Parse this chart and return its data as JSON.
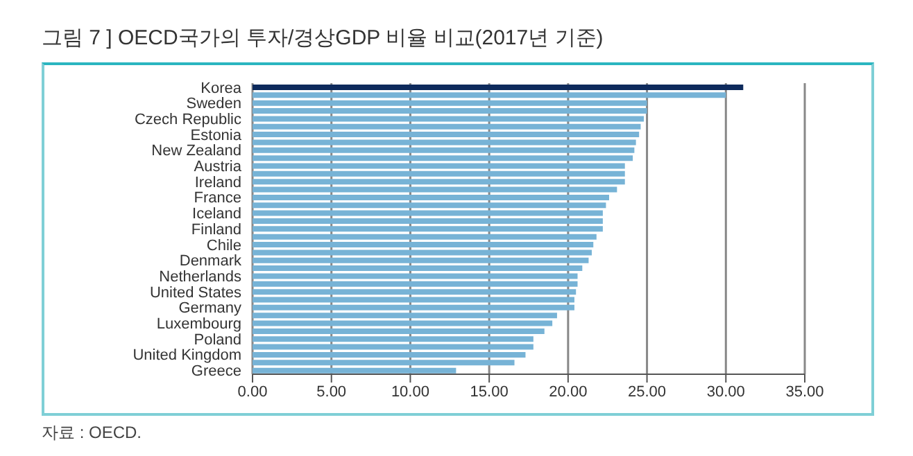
{
  "chart_data": {
    "type": "bar",
    "orientation": "horizontal",
    "title": "그림 7 ]  OECD국가의 투자/경상GDP 비율 비교(2017년 기준)",
    "categories": [
      "Korea",
      null,
      "Sweden",
      null,
      "Czech Republic",
      null,
      "Estonia",
      null,
      "New Zealand",
      null,
      "Austria",
      null,
      "Ireland",
      null,
      "France",
      null,
      "Iceland",
      null,
      "Finland",
      null,
      "Chile",
      null,
      "Denmark",
      null,
      "Netherlands",
      null,
      "United States",
      null,
      "Germany",
      null,
      "Luxembourg",
      null,
      "Poland",
      null,
      "United Kingdom",
      null,
      "Greece"
    ],
    "values": [
      31.1,
      30.0,
      25.0,
      25.0,
      24.8,
      24.6,
      24.5,
      24.3,
      24.2,
      24.1,
      23.6,
      23.6,
      23.6,
      23.1,
      22.6,
      22.4,
      22.2,
      22.2,
      22.2,
      21.8,
      21.6,
      21.5,
      21.3,
      20.9,
      20.6,
      20.6,
      20.5,
      20.4,
      20.4,
      19.3,
      19.0,
      18.5,
      17.8,
      17.8,
      17.3,
      16.6,
      12.9
    ],
    "colors": [
      "#0d2a5c",
      "#77b3d6",
      "#77b3d6",
      "#77b3d6",
      "#77b3d6",
      "#77b3d6",
      "#77b3d6",
      "#77b3d6",
      "#77b3d6",
      "#77b3d6",
      "#77b3d6",
      "#77b3d6",
      "#77b3d6",
      "#77b3d6",
      "#77b3d6",
      "#77b3d6",
      "#77b3d6",
      "#77b3d6",
      "#77b3d6",
      "#77b3d6",
      "#77b3d6",
      "#77b3d6",
      "#77b3d6",
      "#77b3d6",
      "#77b3d6",
      "#77b3d6",
      "#77b3d6",
      "#77b3d6",
      "#77b3d6",
      "#77b3d6",
      "#77b3d6",
      "#77b3d6",
      "#77b3d6",
      "#77b3d6",
      "#77b3d6",
      "#77b3d6",
      "#77b3d6"
    ],
    "xlim": [
      0,
      35
    ],
    "xticks": [
      {
        "value": 0,
        "label": "0.00"
      },
      {
        "value": 5,
        "label": "5.00"
      },
      {
        "value": 10,
        "label": "10.00"
      },
      {
        "value": 15,
        "label": "15.00"
      },
      {
        "value": 20,
        "label": "20.00"
      },
      {
        "value": 25,
        "label": "25.00"
      },
      {
        "value": 30,
        "label": "30.00"
      },
      {
        "value": 35,
        "label": "35.00"
      }
    ],
    "grid": "x",
    "annotations": [
      "자료 : OECD."
    ]
  }
}
